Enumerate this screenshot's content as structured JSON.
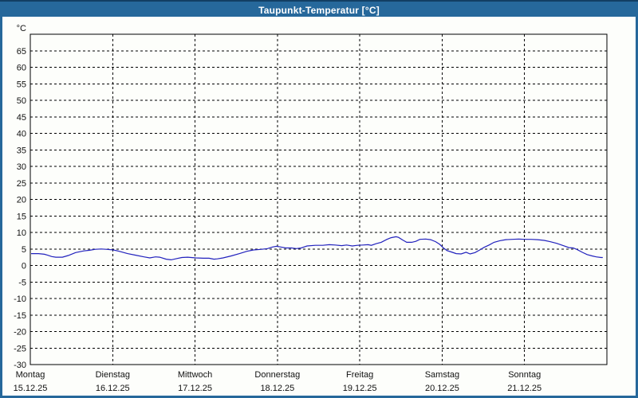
{
  "window": {
    "title": "Taupunkt-Temperatur [°C]"
  },
  "colors": {
    "frame_blue": "#26689B",
    "frame_top_line": "#123E63",
    "content_bg": "#FDFEFB",
    "grid_color": "#000000",
    "axis_color": "#000000",
    "label_color": "#111111",
    "series_blue": "#2121BD"
  },
  "chart_data": {
    "type": "line",
    "title": "Taupunkt-Temperatur [°C]",
    "unit_label": "°C",
    "legend": "none",
    "grid": {
      "style": "dashed",
      "color": "#000000"
    },
    "y_axis": {
      "unit": "°C",
      "plot_min": -30,
      "plot_max": 70,
      "label_min": -30,
      "label_max": 65,
      "tick_step": 5,
      "tick_labels": [
        "65",
        "60",
        "55",
        "50",
        "45",
        "40",
        "35",
        "30",
        "25",
        "20",
        "15",
        "10",
        "5",
        "0",
        "-5",
        "-10",
        "-15",
        "-20",
        "-25",
        "-30"
      ]
    },
    "x_axis": {
      "span_days": 7,
      "days": [
        {
          "name": "Montag",
          "date": "15.12.25"
        },
        {
          "name": "Dienstag",
          "date": "16.12.25"
        },
        {
          "name": "Mittwoch",
          "date": "17.12.25"
        },
        {
          "name": "Donnerstag",
          "date": "18.12.25"
        },
        {
          "name": "Freitag",
          "date": "19.12.25"
        },
        {
          "name": "Samstag",
          "date": "20.12.25"
        },
        {
          "name": "Sonntag",
          "date": "21.12.25"
        }
      ]
    },
    "series": [
      {
        "name": "Taupunkt-Temperatur",
        "color": "#2121BD",
        "points": [
          [
            0.01,
            3.6
          ],
          [
            0.1,
            3.6
          ],
          [
            0.17,
            3.4
          ],
          [
            0.21,
            3.1
          ],
          [
            0.26,
            2.7
          ],
          [
            0.31,
            2.5
          ],
          [
            0.39,
            2.5
          ],
          [
            0.46,
            3.0
          ],
          [
            0.55,
            3.9
          ],
          [
            0.65,
            4.4
          ],
          [
            0.72,
            4.6
          ],
          [
            0.79,
            4.9
          ],
          [
            0.86,
            5.0
          ],
          [
            0.92,
            4.9
          ],
          [
            1.01,
            4.7
          ],
          [
            1.08,
            4.3
          ],
          [
            1.18,
            3.6
          ],
          [
            1.28,
            3.1
          ],
          [
            1.38,
            2.6
          ],
          [
            1.45,
            2.3
          ],
          [
            1.52,
            2.6
          ],
          [
            1.57,
            2.5
          ],
          [
            1.65,
            1.9
          ],
          [
            1.71,
            1.7
          ],
          [
            1.78,
            2.1
          ],
          [
            1.84,
            2.4
          ],
          [
            1.91,
            2.5
          ],
          [
            2.01,
            2.3
          ],
          [
            2.1,
            2.2
          ],
          [
            2.17,
            2.2
          ],
          [
            2.23,
            1.9
          ],
          [
            2.27,
            2.0
          ],
          [
            2.34,
            2.3
          ],
          [
            2.44,
            2.9
          ],
          [
            2.54,
            3.6
          ],
          [
            2.63,
            4.3
          ],
          [
            2.71,
            4.7
          ],
          [
            2.81,
            4.9
          ],
          [
            2.88,
            5.1
          ],
          [
            2.94,
            5.6
          ],
          [
            2.99,
            5.8
          ],
          [
            3.04,
            5.6
          ],
          [
            3.1,
            5.3
          ],
          [
            3.17,
            5.3
          ],
          [
            3.23,
            5.1
          ],
          [
            3.29,
            5.3
          ],
          [
            3.36,
            5.9
          ],
          [
            3.46,
            6.1
          ],
          [
            3.55,
            6.1
          ],
          [
            3.63,
            6.3
          ],
          [
            3.7,
            6.2
          ],
          [
            3.78,
            6.0
          ],
          [
            3.84,
            6.2
          ],
          [
            3.91,
            5.9
          ],
          [
            3.97,
            6.1
          ],
          [
            4.04,
            6.2
          ],
          [
            4.1,
            6.3
          ],
          [
            4.14,
            6.1
          ],
          [
            4.2,
            6.6
          ],
          [
            4.26,
            7.0
          ],
          [
            4.33,
            7.9
          ],
          [
            4.38,
            8.4
          ],
          [
            4.44,
            8.7
          ],
          [
            4.47,
            8.5
          ],
          [
            4.52,
            7.7
          ],
          [
            4.57,
            7.0
          ],
          [
            4.63,
            7.0
          ],
          [
            4.68,
            7.3
          ],
          [
            4.73,
            7.9
          ],
          [
            4.8,
            8.0
          ],
          [
            4.86,
            7.8
          ],
          [
            4.92,
            7.2
          ],
          [
            4.97,
            6.4
          ],
          [
            5.02,
            5.2
          ],
          [
            5.06,
            4.5
          ],
          [
            5.11,
            4.1
          ],
          [
            5.17,
            3.6
          ],
          [
            5.23,
            3.5
          ],
          [
            5.29,
            4.0
          ],
          [
            5.34,
            3.5
          ],
          [
            5.4,
            3.9
          ],
          [
            5.45,
            4.6
          ],
          [
            5.51,
            5.5
          ],
          [
            5.57,
            6.2
          ],
          [
            5.63,
            7.0
          ],
          [
            5.7,
            7.5
          ],
          [
            5.77,
            7.8
          ],
          [
            5.85,
            7.9
          ],
          [
            5.93,
            8.0
          ],
          [
            6.0,
            7.9
          ],
          [
            6.08,
            7.9
          ],
          [
            6.16,
            7.8
          ],
          [
            6.24,
            7.6
          ],
          [
            6.31,
            7.2
          ],
          [
            6.39,
            6.7
          ],
          [
            6.47,
            6.0
          ],
          [
            6.54,
            5.4
          ],
          [
            6.59,
            5.3
          ],
          [
            6.64,
            4.8
          ],
          [
            6.7,
            4.0
          ],
          [
            6.76,
            3.3
          ],
          [
            6.82,
            2.9
          ],
          [
            6.87,
            2.6
          ],
          [
            6.93,
            2.4
          ],
          [
            6.95,
            2.4
          ]
        ]
      }
    ]
  }
}
